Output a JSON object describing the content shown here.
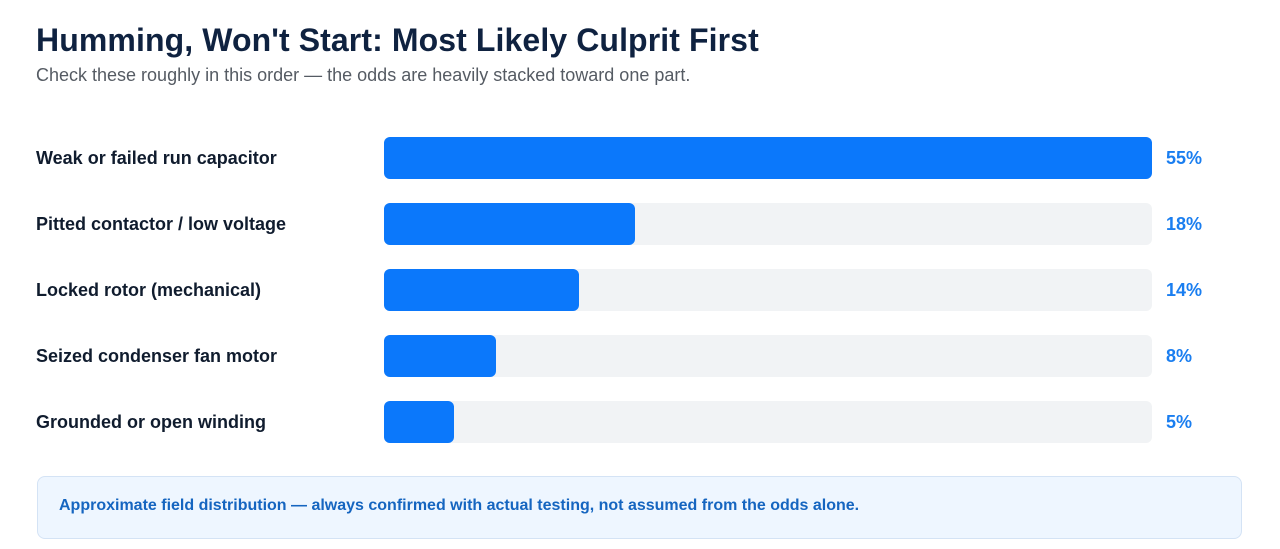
{
  "header": {
    "title": "Humming, Won't Start: Most Likely Culprit First",
    "subtitle": "Check these roughly in this order — the odds are heavily stacked toward one part."
  },
  "chart_data": {
    "type": "bar",
    "orientation": "horizontal",
    "categories": [
      "Weak or failed run capacitor",
      "Pitted contactor / low voltage",
      "Locked rotor (mechanical)",
      "Seized condenser fan motor",
      "Grounded or open winding"
    ],
    "values": [
      55,
      18,
      14,
      8,
      5
    ],
    "value_labels": [
      "55%",
      "18%",
      "14%",
      "8%",
      "5%"
    ],
    "unit": "%",
    "xlim": [
      0,
      55
    ],
    "grid": false,
    "legend": "none",
    "colors": {
      "bar": "#0b78fb",
      "track": "#f1f3f5",
      "value_text": "#1a7ef0"
    }
  },
  "footer_note": {
    "text": "Approximate field distribution — always confirmed with actual testing, not assumed from the odds alone."
  }
}
